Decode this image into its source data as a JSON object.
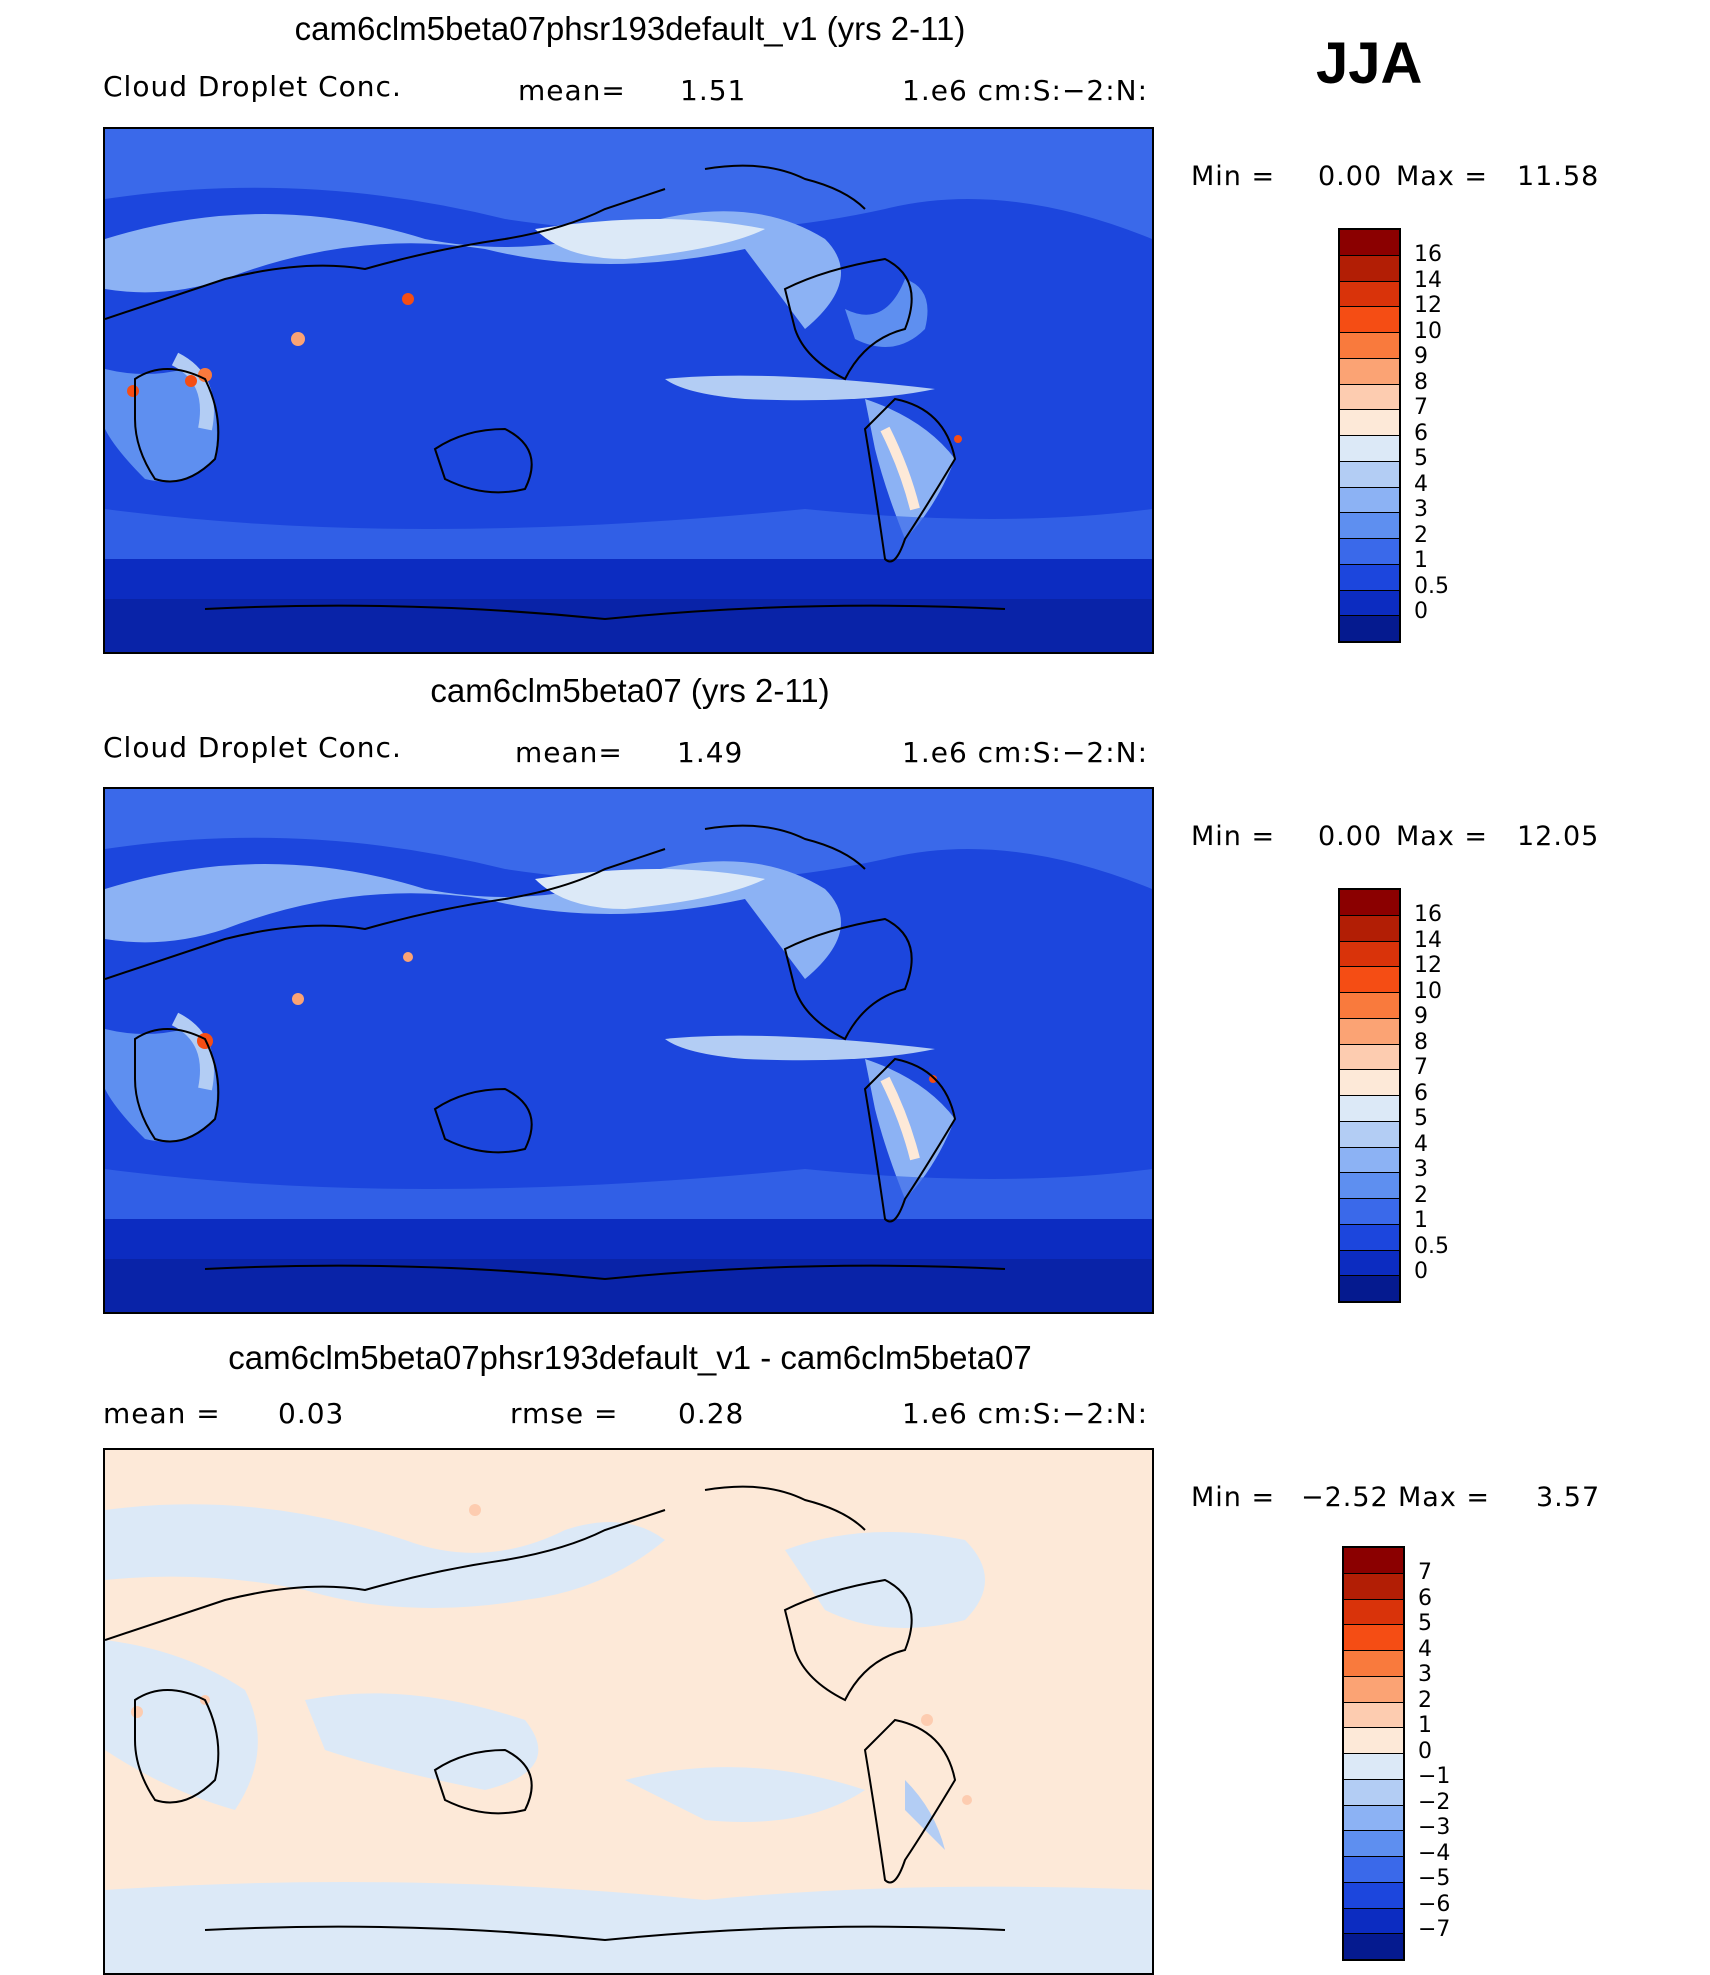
{
  "season": "JJA",
  "panels": [
    {
      "title": "cam6clm5beta07phsr193default_v1 (yrs 2-11)",
      "variable": "Cloud Droplet Conc.",
      "mean_label": "mean=",
      "mean_value": "1.51",
      "units": "1.e6 cm:S:−2:N:",
      "min_label": "Min =",
      "min_value": "0.00",
      "max_label": "Max =",
      "max_value": "11.58"
    },
    {
      "title": "cam6clm5beta07 (yrs 2-11)",
      "variable": "Cloud Droplet Conc.",
      "mean_label": "mean=",
      "mean_value": "1.49",
      "units": "1.e6 cm:S:−2:N:",
      "min_label": "Min =",
      "min_value": "0.00",
      "max_label": "Max =",
      "max_value": "12.05"
    },
    {
      "title": "cam6clm5beta07phsr193default_v1 - cam6clm5beta07",
      "mean_label": "mean =",
      "mean_value": "0.03",
      "rmse_label": "rmse =",
      "rmse_value": "0.28",
      "units": "1.e6 cm:S:−2:N:",
      "min_label": "Min =",
      "min_value": "−2.52",
      "max_label": "Max =",
      "max_value": "3.57"
    }
  ],
  "colorbar_abs": {
    "labels": [
      "16",
      "14",
      "12",
      "10",
      "9",
      "8",
      "7",
      "6",
      "5",
      "4",
      "3",
      "2",
      "1",
      "0.5",
      "0"
    ],
    "colors": [
      "#8b0000",
      "#b21e05",
      "#d9330a",
      "#f54d14",
      "#f97a3d",
      "#fba374",
      "#fdccb0",
      "#fde9d8",
      "#dce9f7",
      "#b3cdf4",
      "#8cb2f4",
      "#5e8ff0",
      "#3a69ea",
      "#1c46dd",
      "#0c2cc1",
      "#051a8f"
    ]
  },
  "colorbar_diff": {
    "labels": [
      "7",
      "6",
      "5",
      "4",
      "3",
      "2",
      "1",
      "0",
      "−1",
      "−2",
      "−3",
      "−4",
      "−5",
      "−6",
      "−7"
    ],
    "colors": [
      "#8b0000",
      "#b21e05",
      "#d9330a",
      "#f54d14",
      "#f97a3d",
      "#fba374",
      "#fdccb0",
      "#fde9d8",
      "#dce9f7",
      "#b3cdf4",
      "#8cb2f4",
      "#5e8ff0",
      "#3a69ea",
      "#1c46dd",
      "#0c2cc1",
      "#051a8f"
    ]
  }
}
